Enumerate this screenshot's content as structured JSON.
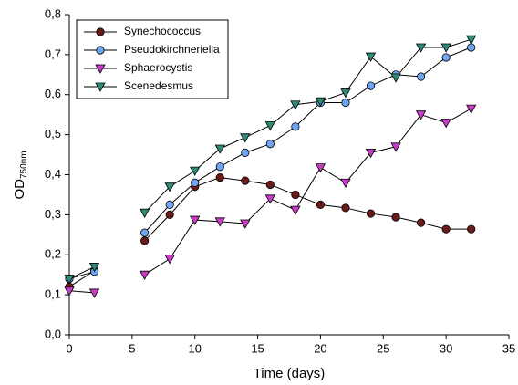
{
  "chart_data": {
    "type": "line",
    "x_label": "Time (days)",
    "y_label": "OD",
    "y_label_sub": "750nm",
    "x": [
      0,
      2,
      4,
      6,
      8,
      10,
      12,
      14,
      16,
      18,
      20,
      22,
      24,
      26,
      28,
      30,
      32
    ],
    "series": [
      {
        "name": "Synechococcus",
        "color": "#6b1a1a",
        "marker": "circle",
        "values": [
          0.12,
          0.16,
          null,
          0.235,
          0.3,
          0.37,
          0.393,
          0.385,
          0.375,
          0.35,
          0.325,
          0.317,
          0.303,
          0.294,
          0.28,
          0.264,
          0.264
        ]
      },
      {
        "name": "Pseudokirchneriella",
        "color": "#6fa4f0",
        "marker": "circle",
        "values": [
          0.14,
          0.158,
          null,
          0.255,
          0.325,
          0.38,
          0.42,
          0.455,
          0.477,
          0.52,
          0.58,
          0.58,
          0.622,
          0.65,
          0.645,
          0.693,
          0.718
        ]
      },
      {
        "name": "Sphaerocystis",
        "color": "#c83cc8",
        "marker": "triangle-down",
        "values": [
          0.11,
          0.105,
          null,
          0.15,
          0.19,
          0.287,
          0.283,
          0.278,
          0.34,
          0.312,
          0.418,
          0.38,
          0.455,
          0.47,
          0.55,
          0.53,
          0.565
        ]
      },
      {
        "name": "Scenedesmus",
        "color": "#2e8b78",
        "marker": "triangle-down",
        "values": [
          0.14,
          0.17,
          null,
          0.305,
          0.37,
          0.41,
          0.465,
          0.493,
          0.523,
          0.575,
          0.583,
          0.605,
          0.695,
          0.643,
          0.718,
          0.718,
          0.738
        ]
      }
    ],
    "xlim": [
      0,
      35
    ],
    "xticks": [
      0,
      5,
      10,
      15,
      20,
      25,
      30,
      35
    ],
    "ylim": [
      0,
      0.8
    ],
    "yticks": [
      {
        "value": 0,
        "label": "0,0"
      },
      {
        "value": 0.1,
        "label": "0,1"
      },
      {
        "value": 0.2,
        "label": "0,2"
      },
      {
        "value": 0.3,
        "label": "0,3"
      },
      {
        "value": 0.4,
        "label": "0,4"
      },
      {
        "value": 0.5,
        "label": "0,5"
      },
      {
        "value": 0.6,
        "label": "0,6"
      },
      {
        "value": 0.7,
        "label": "0,7"
      },
      {
        "value": 0.8,
        "label": "0,8"
      }
    ],
    "grid": false,
    "legend": "upper left"
  }
}
